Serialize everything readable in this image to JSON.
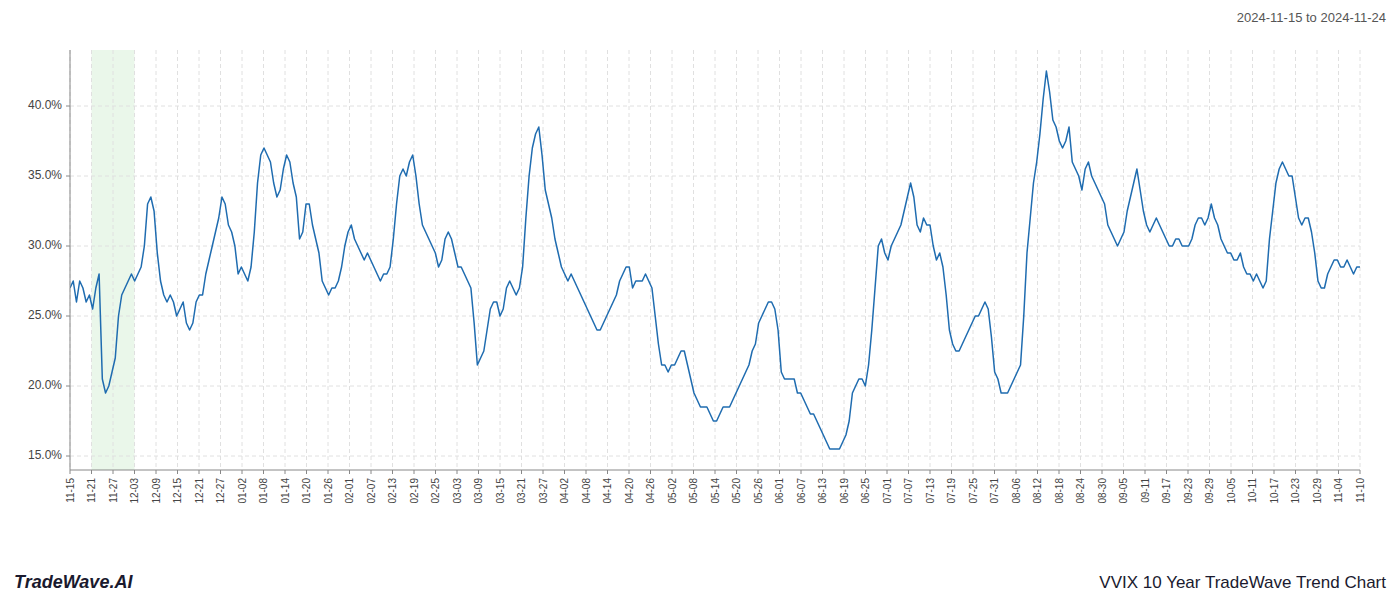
{
  "chart_data": {
    "type": "line",
    "title": "VVIX 10 Year TradeWave Trend Chart",
    "subtitle": "2024-11-15 to 2024-11-24",
    "annotations": [
      "TradeWave.AI"
    ],
    "color": "#1f6cb0",
    "grid": true,
    "xlim": [
      0,
      60
    ],
    "xticks": [
      {
        "value": 0,
        "label": "11-15"
      },
      {
        "value": 1,
        "label": "11-21"
      },
      {
        "value": 2,
        "label": "11-27"
      },
      {
        "value": 3,
        "label": "12-03"
      },
      {
        "value": 4,
        "label": "12-09"
      },
      {
        "value": 5,
        "label": "12-15"
      },
      {
        "value": 6,
        "label": "12-21"
      },
      {
        "value": 7,
        "label": "12-27"
      },
      {
        "value": 8,
        "label": "01-02"
      },
      {
        "value": 9,
        "label": "01-08"
      },
      {
        "value": 10,
        "label": "01-14"
      },
      {
        "value": 11,
        "label": "01-20"
      },
      {
        "value": 12,
        "label": "01-26"
      },
      {
        "value": 13,
        "label": "02-01"
      },
      {
        "value": 14,
        "label": "02-07"
      },
      {
        "value": 15,
        "label": "02-13"
      },
      {
        "value": 16,
        "label": "02-19"
      },
      {
        "value": 17,
        "label": "02-25"
      },
      {
        "value": 18,
        "label": "03-03"
      },
      {
        "value": 19,
        "label": "03-09"
      },
      {
        "value": 20,
        "label": "03-15"
      },
      {
        "value": 21,
        "label": "03-21"
      },
      {
        "value": 22,
        "label": "03-27"
      },
      {
        "value": 23,
        "label": "04-02"
      },
      {
        "value": 24,
        "label": "04-08"
      },
      {
        "value": 25,
        "label": "04-14"
      },
      {
        "value": 26,
        "label": "04-20"
      },
      {
        "value": 27,
        "label": "04-26"
      },
      {
        "value": 28,
        "label": "05-02"
      },
      {
        "value": 29,
        "label": "05-08"
      },
      {
        "value": 30,
        "label": "05-14"
      },
      {
        "value": 31,
        "label": "05-20"
      },
      {
        "value": 32,
        "label": "05-26"
      },
      {
        "value": 33,
        "label": "06-01"
      },
      {
        "value": 34,
        "label": "06-07"
      },
      {
        "value": 35,
        "label": "06-13"
      },
      {
        "value": 36,
        "label": "06-19"
      },
      {
        "value": 37,
        "label": "06-25"
      },
      {
        "value": 38,
        "label": "07-01"
      },
      {
        "value": 39,
        "label": "07-07"
      },
      {
        "value": 40,
        "label": "07-13"
      },
      {
        "value": 41,
        "label": "07-19"
      },
      {
        "value": 42,
        "label": "07-25"
      },
      {
        "value": 43,
        "label": "07-31"
      },
      {
        "value": 44,
        "label": "08-06"
      },
      {
        "value": 45,
        "label": "08-12"
      },
      {
        "value": 46,
        "label": "08-18"
      },
      {
        "value": 47,
        "label": "08-24"
      },
      {
        "value": 48,
        "label": "08-30"
      },
      {
        "value": 49,
        "label": "09-05"
      },
      {
        "value": 50,
        "label": "09-11"
      },
      {
        "value": 51,
        "label": "09-17"
      },
      {
        "value": 52,
        "label": "09-23"
      },
      {
        "value": 53,
        "label": "09-29"
      },
      {
        "value": 54,
        "label": "10-05"
      },
      {
        "value": 55,
        "label": "10-11"
      },
      {
        "value": 56,
        "label": "10-17"
      },
      {
        "value": 57,
        "label": "10-23"
      },
      {
        "value": 58,
        "label": "10-29"
      },
      {
        "value": 59,
        "label": "11-04"
      },
      {
        "value": 60,
        "label": "11-10"
      }
    ],
    "ylim": [
      14.0,
      44.0
    ],
    "yticks": [
      {
        "value": 15.0,
        "label": "15.0%"
      },
      {
        "value": 20.0,
        "label": "20.0%"
      },
      {
        "value": 25.0,
        "label": "25.0%"
      },
      {
        "value": 30.0,
        "label": "30.0%"
      },
      {
        "value": 35.0,
        "label": "35.0%"
      },
      {
        "value": 40.0,
        "label": "40.0%"
      }
    ],
    "shaded_range": {
      "x": [
        1.0,
        3.0
      ],
      "color": "#d6f0d6"
    },
    "values": [
      27.0,
      27.5,
      26.0,
      27.5,
      27.0,
      26.0,
      26.5,
      25.5,
      27.0,
      28.0,
      20.5,
      19.5,
      20.0,
      21.0,
      22.0,
      25.0,
      26.5,
      27.0,
      27.5,
      28.0,
      27.5,
      28.0,
      28.5,
      30.0,
      33.0,
      33.5,
      32.5,
      29.5,
      27.5,
      26.5,
      26.0,
      26.5,
      26.0,
      25.0,
      25.5,
      26.0,
      24.5,
      24.0,
      24.5,
      26.0,
      26.5,
      26.5,
      28.0,
      29.0,
      30.0,
      31.0,
      32.0,
      33.5,
      33.0,
      31.5,
      31.0,
      30.0,
      28.0,
      28.5,
      28.0,
      27.5,
      28.5,
      31.0,
      34.5,
      36.5,
      37.0,
      36.5,
      36.0,
      34.5,
      33.5,
      34.0,
      35.5,
      36.5,
      36.0,
      34.5,
      33.5,
      30.5,
      31.0,
      33.0,
      33.0,
      31.5,
      30.5,
      29.5,
      27.5,
      27.0,
      26.5,
      27.0,
      27.0,
      27.5,
      28.5,
      30.0,
      31.0,
      31.5,
      30.5,
      30.0,
      29.5,
      29.0,
      29.5,
      29.0,
      28.5,
      28.0,
      27.5,
      28.0,
      28.0,
      28.5,
      30.5,
      33.0,
      35.0,
      35.5,
      35.0,
      36.0,
      36.5,
      35.0,
      33.0,
      31.5,
      31.0,
      30.5,
      30.0,
      29.5,
      28.5,
      29.0,
      30.5,
      31.0,
      30.5,
      29.5,
      28.5,
      28.5,
      28.0,
      27.5,
      27.0,
      24.5,
      21.5,
      22.0,
      22.5,
      24.0,
      25.5,
      26.0,
      26.0,
      25.0,
      25.5,
      27.0,
      27.5,
      27.0,
      26.5,
      27.0,
      28.5,
      32.0,
      35.0,
      37.0,
      38.0,
      38.5,
      36.5,
      34.0,
      33.0,
      32.0,
      30.5,
      29.5,
      28.5,
      28.0,
      27.5,
      28.0,
      27.5,
      27.0,
      26.5,
      26.0,
      25.5,
      25.0,
      24.5,
      24.0,
      24.0,
      24.5,
      25.0,
      25.5,
      26.0,
      26.5,
      27.5,
      28.0,
      28.5,
      28.5,
      27.0,
      27.5,
      27.5,
      27.5,
      28.0,
      27.5,
      27.0,
      25.0,
      23.0,
      21.5,
      21.5,
      21.0,
      21.5,
      21.5,
      22.0,
      22.5,
      22.5,
      21.5,
      20.5,
      19.5,
      19.0,
      18.5,
      18.5,
      18.5,
      18.0,
      17.5,
      17.5,
      18.0,
      18.5,
      18.5,
      18.5,
      19.0,
      19.5,
      20.0,
      20.5,
      21.0,
      21.5,
      22.5,
      23.0,
      24.5,
      25.0,
      25.5,
      26.0,
      26.0,
      25.5,
      24.0,
      21.0,
      20.5,
      20.5,
      20.5,
      20.5,
      19.5,
      19.5,
      19.0,
      18.5,
      18.0,
      18.0,
      17.5,
      17.0,
      16.5,
      16.0,
      15.5,
      15.5,
      15.5,
      15.5,
      16.0,
      16.5,
      17.5,
      19.5,
      20.0,
      20.5,
      20.5,
      20.0,
      21.5,
      24.0,
      27.0,
      30.0,
      30.5,
      29.5,
      29.0,
      30.0,
      30.5,
      31.0,
      31.5,
      32.5,
      33.5,
      34.5,
      33.5,
      31.5,
      31.0,
      32.0,
      31.5,
      31.5,
      30.0,
      29.0,
      29.5,
      28.5,
      26.5,
      24.0,
      23.0,
      22.5,
      22.5,
      23.0,
      23.5,
      24.0,
      24.5,
      25.0,
      25.0,
      25.5,
      26.0,
      25.5,
      23.5,
      21.0,
      20.5,
      19.5,
      19.5,
      19.5,
      20.0,
      20.5,
      21.0,
      21.5,
      25.0,
      29.5,
      32.0,
      34.5,
      36.0,
      38.0,
      40.5,
      42.5,
      41.0,
      39.0,
      38.5,
      37.5,
      37.0,
      37.5,
      38.5,
      36.0,
      35.5,
      35.0,
      34.0,
      35.5,
      36.0,
      35.0,
      34.5,
      34.0,
      33.5,
      33.0,
      31.5,
      31.0,
      30.5,
      30.0,
      30.5,
      31.0,
      32.5,
      33.5,
      34.5,
      35.5,
      34.0,
      32.5,
      31.5,
      31.0,
      31.5,
      32.0,
      31.5,
      31.0,
      30.5,
      30.0,
      30.0,
      30.5,
      30.5,
      30.0,
      30.0,
      30.0,
      30.5,
      31.5,
      32.0,
      32.0,
      31.5,
      32.0,
      33.0,
      32.0,
      31.5,
      30.5,
      30.0,
      29.5,
      29.5,
      29.0,
      29.0,
      29.5,
      28.5,
      28.0,
      28.0,
      27.5,
      28.0,
      27.5,
      27.0,
      27.5,
      30.5,
      32.5,
      34.5,
      35.5,
      36.0,
      35.5,
      35.0,
      35.0,
      33.5,
      32.0,
      31.5,
      32.0,
      32.0,
      31.0,
      29.5,
      27.5,
      27.0,
      27.0,
      28.0,
      28.5,
      29.0,
      29.0,
      28.5,
      28.5,
      29.0,
      28.5,
      28.0,
      28.5,
      28.5
    ]
  }
}
